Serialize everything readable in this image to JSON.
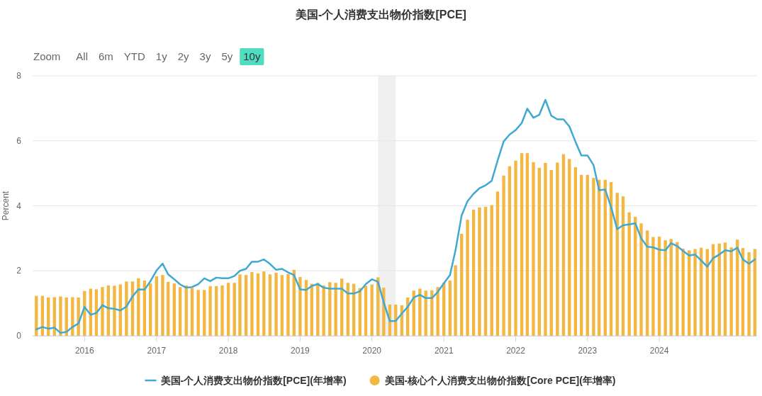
{
  "chart_data": {
    "type": "line",
    "title": "美国-个人消费支出物价指数[PCE]",
    "ylabel": "Percent",
    "annotations": [
      "Zoom",
      "All",
      "6m",
      "YTD",
      "1y",
      "2y",
      "3y",
      "5y",
      "10y"
    ],
    "x": [
      "2015-05",
      "2015-06",
      "2015-07",
      "2015-08",
      "2015-09",
      "2015-10",
      "2015-11",
      "2015-12",
      "2016-01",
      "2016-02",
      "2016-03",
      "2016-04",
      "2016-05",
      "2016-06",
      "2016-07",
      "2016-08",
      "2016-09",
      "2016-10",
      "2016-11",
      "2016-12",
      "2017-01",
      "2017-02",
      "2017-03",
      "2017-04",
      "2017-05",
      "2017-06",
      "2017-07",
      "2017-08",
      "2017-09",
      "2017-10",
      "2017-11",
      "2017-12",
      "2018-01",
      "2018-02",
      "2018-03",
      "2018-04",
      "2018-05",
      "2018-06",
      "2018-07",
      "2018-08",
      "2018-09",
      "2018-10",
      "2018-11",
      "2018-12",
      "2019-01",
      "2019-02",
      "2019-03",
      "2019-04",
      "2019-05",
      "2019-06",
      "2019-07",
      "2019-08",
      "2019-09",
      "2019-10",
      "2019-11",
      "2019-12",
      "2020-01",
      "2020-02",
      "2020-03",
      "2020-04",
      "2020-05",
      "2020-06",
      "2020-07",
      "2020-08",
      "2020-09",
      "2020-10",
      "2020-11",
      "2020-12",
      "2021-01",
      "2021-02",
      "2021-03",
      "2021-04",
      "2021-05",
      "2021-06",
      "2021-07",
      "2021-08",
      "2021-09",
      "2021-10",
      "2021-11",
      "2021-12",
      "2022-01",
      "2022-02",
      "2022-03",
      "2022-04",
      "2022-05",
      "2022-06",
      "2022-07",
      "2022-08",
      "2022-09",
      "2022-10",
      "2022-11",
      "2022-12",
      "2023-01",
      "2023-02",
      "2023-03",
      "2023-04",
      "2023-05",
      "2023-06",
      "2023-07",
      "2023-08",
      "2023-09",
      "2023-10",
      "2023-11",
      "2023-12",
      "2024-01",
      "2024-02",
      "2024-03",
      "2024-04",
      "2024-05",
      "2024-06",
      "2024-07",
      "2024-08",
      "2024-09",
      "2024-10",
      "2024-11",
      "2024-12",
      "2025-01",
      "2025-02",
      "2025-03",
      "2025-04",
      "2025-05"
    ],
    "series": [
      {
        "name": "美国-个人消费支出物价指数[PCE](年增率)",
        "color": "#3fa9d1",
        "values": [
          0.2,
          0.27,
          0.22,
          0.25,
          0.09,
          0.12,
          0.27,
          0.38,
          0.89,
          0.65,
          0.7,
          0.94,
          0.85,
          0.83,
          0.78,
          0.9,
          1.21,
          1.43,
          1.42,
          1.68,
          2.01,
          2.22,
          1.89,
          1.74,
          1.58,
          1.48,
          1.5,
          1.59,
          1.77,
          1.68,
          1.79,
          1.77,
          1.77,
          1.84,
          2.0,
          2.06,
          2.28,
          2.28,
          2.35,
          2.21,
          2.03,
          2.06,
          1.95,
          1.87,
          1.43,
          1.41,
          1.53,
          1.59,
          1.48,
          1.45,
          1.45,
          1.45,
          1.3,
          1.3,
          1.37,
          1.59,
          1.74,
          1.66,
          1.03,
          0.45,
          0.46,
          0.68,
          0.89,
          1.18,
          1.26,
          1.16,
          1.16,
          1.35,
          1.62,
          1.87,
          2.63,
          3.7,
          4.14,
          4.37,
          4.54,
          4.63,
          4.77,
          5.39,
          5.98,
          6.19,
          6.33,
          6.55,
          6.99,
          6.71,
          6.8,
          7.26,
          6.77,
          6.66,
          6.66,
          6.44,
          5.97,
          5.55,
          5.55,
          5.25,
          4.48,
          4.5,
          3.96,
          3.28,
          3.4,
          3.43,
          3.46,
          3.0,
          2.74,
          2.72,
          2.65,
          2.63,
          2.85,
          2.76,
          2.61,
          2.47,
          2.5,
          2.32,
          2.13,
          2.39,
          2.5,
          2.63,
          2.6,
          2.71,
          2.35,
          2.22,
          2.35
        ]
      },
      {
        "name": "美国-核心个人消费支出物价指数[Core PCE](年增率)",
        "type": "bar",
        "color": "#f2b843",
        "values": [
          1.23,
          1.23,
          1.18,
          1.19,
          1.21,
          1.18,
          1.19,
          1.18,
          1.38,
          1.45,
          1.43,
          1.5,
          1.55,
          1.54,
          1.58,
          1.67,
          1.67,
          1.77,
          1.7,
          1.61,
          1.83,
          1.87,
          1.66,
          1.61,
          1.5,
          1.55,
          1.47,
          1.41,
          1.41,
          1.53,
          1.53,
          1.55,
          1.63,
          1.63,
          1.89,
          1.87,
          1.96,
          1.92,
          1.98,
          1.89,
          1.94,
          1.87,
          1.9,
          2.03,
          1.81,
          1.72,
          1.6,
          1.63,
          1.55,
          1.65,
          1.63,
          1.76,
          1.63,
          1.6,
          1.47,
          1.54,
          1.58,
          1.8,
          1.48,
          0.96,
          0.96,
          0.94,
          1.18,
          1.39,
          1.45,
          1.39,
          1.4,
          1.5,
          1.63,
          1.7,
          2.17,
          3.14,
          3.57,
          3.88,
          3.95,
          3.97,
          4.02,
          4.44,
          4.93,
          5.22,
          5.39,
          5.62,
          5.62,
          5.34,
          5.17,
          5.32,
          5.1,
          5.33,
          5.59,
          5.44,
          5.19,
          4.95,
          4.95,
          4.86,
          4.8,
          4.8,
          4.73,
          4.4,
          4.29,
          3.8,
          3.66,
          3.46,
          3.24,
          3.04,
          3.05,
          2.94,
          2.98,
          2.88,
          2.68,
          2.63,
          2.67,
          2.71,
          2.67,
          2.82,
          2.84,
          2.87,
          2.72,
          2.96,
          2.7,
          2.57,
          2.67
        ]
      }
    ],
    "xlim": [
      "2015-04-12",
      "2025-05-12"
    ],
    "xticks": [
      "2016",
      "2017",
      "2018",
      "2019",
      "2020",
      "2021",
      "2022",
      "2023",
      "2024"
    ],
    "ylim": [
      0,
      8
    ],
    "yticks": [
      0,
      2,
      4,
      6,
      8
    ],
    "grid": "y",
    "legend": "bottom",
    "bands": [
      {
        "axis": "x",
        "from": "2020-02",
        "to": "2020-05",
        "color": "#f0f0f0"
      }
    ]
  }
}
